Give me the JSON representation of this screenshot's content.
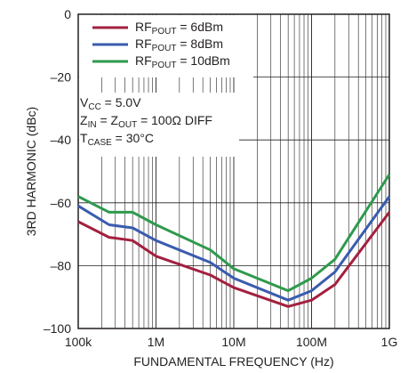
{
  "chart_data": {
    "type": "line",
    "title": "",
    "xlabel": "FUNDAMENTAL FREQUENCY (Hz)",
    "ylabel": "3RD HARMONIC (dBc)",
    "x_scale": "log",
    "xlim": [
      100000,
      1000000000
    ],
    "ylim": [
      -100,
      0
    ],
    "grid": true,
    "x_ticks": [
      100000,
      1000000,
      10000000,
      100000000,
      1000000000
    ],
    "x_tick_labels": [
      "100k",
      "1M",
      "10M",
      "100M",
      "1G"
    ],
    "y_ticks": [
      0,
      -20,
      -40,
      -60,
      -80,
      -100
    ],
    "y_tick_labels": [
      "0",
      "–20",
      "–40",
      "–60",
      "–80",
      "–100"
    ],
    "legend_position": "top-left",
    "series": [
      {
        "name": "RFPOUT = 6dBm",
        "legend_main": "RF",
        "legend_sub": "POUT",
        "legend_rest": " = 6dBm",
        "color": "#a3203f",
        "x": [
          100000,
          250000,
          500000,
          1000000,
          5000000,
          10000000,
          50000000,
          100000000,
          200000000,
          1000000000
        ],
        "y": [
          -66,
          -71,
          -72,
          -77,
          -83,
          -87,
          -93,
          -91,
          -86,
          -63
        ]
      },
      {
        "name": "RFPOUT = 8dBm",
        "legend_main": "RF",
        "legend_sub": "POUT",
        "legend_rest": " = 8dBm",
        "color": "#3a5cae",
        "x": [
          100000,
          250000,
          500000,
          1000000,
          5000000,
          10000000,
          50000000,
          100000000,
          200000000,
          1000000000
        ],
        "y": [
          -61,
          -67,
          -68,
          -72,
          -79,
          -84,
          -91,
          -88,
          -82,
          -58
        ]
      },
      {
        "name": "RFPOUT = 10dBm",
        "legend_main": "RF",
        "legend_sub": "POUT",
        "legend_rest": " = 10dBm",
        "color": "#2e9a4d",
        "x": [
          100000,
          250000,
          500000,
          1000000,
          5000000,
          10000000,
          50000000,
          100000000,
          200000000,
          1000000000
        ],
        "y": [
          -58,
          -63,
          -63,
          -67,
          -75,
          -81,
          -88,
          -84,
          -78,
          -51
        ]
      }
    ],
    "annotations": [
      {
        "main": "V",
        "sub": "CC",
        "rest": " = 5.0V"
      },
      {
        "main": "Z",
        "sub": "IN",
        "rest": " = Z",
        "sub2": "OUT",
        "rest2": " = 100Ω DIFF"
      },
      {
        "main": "T",
        "sub": "CASE",
        "rest": " = 30°C"
      }
    ]
  }
}
